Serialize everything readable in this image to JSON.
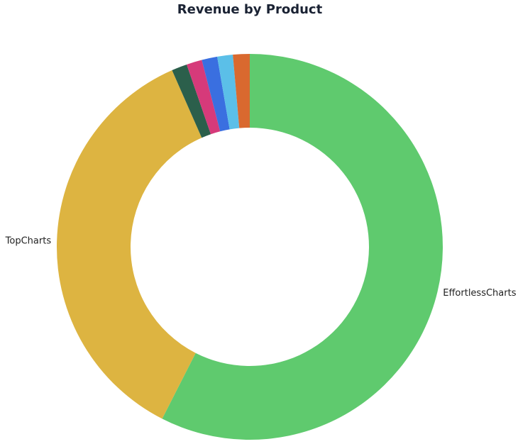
{
  "chart_data": {
    "type": "donut",
    "title": "Revenue by Product",
    "categories": [
      "EffortlessCharts",
      "TopCharts",
      null,
      null,
      null,
      null,
      null
    ],
    "values": [
      57.5,
      35.9,
      1.3,
      1.3,
      1.3,
      1.3,
      1.4
    ],
    "colors": [
      "#5fca6e",
      "#ddb441",
      "#2b5f4b",
      "#d63a7a",
      "#3a6fe0",
      "#5bbfe8",
      "#d9692f"
    ]
  }
}
